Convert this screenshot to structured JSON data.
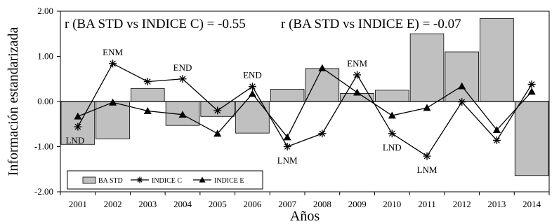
{
  "chart_data": {
    "type": "bar",
    "xlabel": "Años",
    "ylabel": "Información estandarizada",
    "categories": [
      "2001",
      "2002",
      "2003",
      "2004",
      "2005",
      "2006",
      "2007",
      "2008",
      "2009",
      "2010",
      "2011",
      "2012",
      "2013",
      "2014"
    ],
    "ylim": [
      -2.0,
      2.0
    ],
    "yticks": [
      "2.00",
      "1.00",
      "0.00",
      "-1.00",
      "-2.00"
    ],
    "yticks_values": [
      2,
      1,
      0,
      -1,
      -2
    ],
    "grid": false,
    "legend_position": "bottom-left",
    "annotations": [
      "r (BA STD vs INDICE C) = -0.55",
      "r (BA STD vs INDICE E) = -0.07"
    ],
    "series": [
      {
        "name": "BA STD",
        "kind": "bar",
        "color": "#c0c0c0",
        "values": [
          -0.95,
          -0.83,
          0.29,
          -0.53,
          -0.33,
          -0.7,
          0.27,
          0.73,
          0.18,
          0.25,
          1.5,
          1.1,
          1.84,
          -1.64
        ]
      },
      {
        "name": "INDICE C",
        "kind": "line",
        "marker": "star",
        "color": "#000000",
        "values": [
          -0.56,
          0.84,
          0.44,
          0.5,
          -0.2,
          0.33,
          -1.0,
          -0.71,
          0.59,
          -0.71,
          -1.21,
          -0.01,
          -0.86,
          0.38
        ]
      },
      {
        "name": "INDICE E",
        "kind": "line",
        "marker": "triangle",
        "color": "#000000",
        "values": [
          -0.33,
          -0.02,
          -0.21,
          -0.29,
          -0.71,
          0.17,
          -0.79,
          0.74,
          0.2,
          -0.31,
          -0.14,
          0.34,
          -0.63,
          0.22
        ]
      }
    ],
    "point_labels": [
      {
        "text": "LND",
        "year": "2001",
        "position": "below"
      },
      {
        "text": "ENM",
        "year": "2002",
        "position": "above"
      },
      {
        "text": "END",
        "year": "2004",
        "position": "above"
      },
      {
        "text": "END",
        "year": "2006",
        "position": "above"
      },
      {
        "text": "LNM",
        "year": "2007",
        "position": "below"
      },
      {
        "text": "ENM",
        "year": "2009",
        "position": "above"
      },
      {
        "text": "LND",
        "year": "2010",
        "position": "below"
      },
      {
        "text": "LNM",
        "year": "2011",
        "position": "below"
      }
    ]
  }
}
